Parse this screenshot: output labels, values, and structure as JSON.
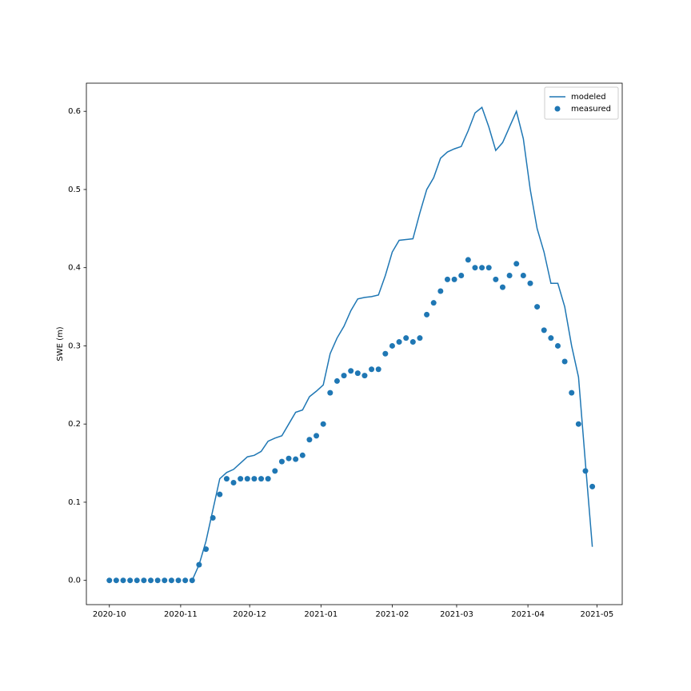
{
  "chart_data": {
    "type": "line",
    "ylabel": "SWE (m)",
    "x": [
      0,
      3,
      6,
      9,
      12,
      15,
      18,
      21,
      24,
      27,
      30,
      33,
      36,
      39,
      42,
      45,
      48,
      51,
      54,
      57,
      60,
      63,
      66,
      69,
      72,
      75,
      78,
      81,
      84,
      87,
      90,
      93,
      96,
      99,
      102,
      105,
      108,
      111,
      114,
      117,
      120,
      123,
      126,
      129,
      132,
      135,
      138,
      141,
      144,
      147,
      150,
      153,
      156,
      159,
      162,
      165,
      168,
      171,
      174,
      177,
      180,
      183,
      186,
      189,
      192,
      195,
      198,
      201,
      204,
      207,
      210
    ],
    "series": [
      {
        "name": "modeled",
        "type": "line",
        "color": "#1f77b4",
        "values": [
          null,
          null,
          null,
          null,
          null,
          null,
          null,
          null,
          null,
          null,
          null,
          null,
          0,
          0.02,
          0.05,
          0.09,
          0.13,
          0.138,
          0.142,
          0.15,
          0.158,
          0.16,
          0.165,
          0.178,
          0.182,
          0.185,
          0.2,
          0.215,
          0.218,
          0.235,
          0.242,
          0.25,
          0.29,
          0.31,
          0.325,
          0.345,
          0.36,
          0.362,
          0.363,
          0.365,
          0.39,
          0.42,
          0.435,
          0.436,
          0.437,
          0.47,
          0.5,
          0.515,
          0.54,
          0.548,
          0.552,
          0.555,
          0.575,
          0.598,
          0.605,
          0.58,
          0.55,
          0.56,
          0.58,
          0.6,
          0.565,
          0.5,
          0.45,
          0.42,
          0.38,
          0.38,
          0.35,
          0.3,
          0.26,
          0.15,
          0.043
        ]
      },
      {
        "name": "measured",
        "type": "scatter",
        "color": "#1f77b4",
        "values": [
          0,
          0,
          0,
          0,
          0,
          0,
          0,
          0,
          0,
          0,
          0,
          0,
          0,
          0.02,
          0.04,
          0.08,
          0.11,
          0.13,
          0.125,
          0.13,
          0.13,
          0.13,
          0.13,
          0.13,
          0.14,
          0.152,
          0.156,
          0.155,
          0.16,
          0.18,
          0.185,
          0.2,
          0.24,
          0.255,
          0.262,
          0.268,
          0.265,
          0.262,
          0.27,
          0.27,
          0.29,
          0.3,
          0.305,
          0.31,
          0.305,
          0.31,
          0.34,
          0.355,
          0.37,
          0.385,
          0.385,
          0.39,
          0.41,
          0.4,
          0.4,
          0.4,
          0.385,
          0.375,
          0.39,
          0.405,
          0.39,
          0.38,
          0.35,
          0.32,
          0.31,
          0.3,
          0.28,
          0.24,
          0.2,
          0.14,
          0.12
        ]
      }
    ],
    "xlim": [
      -10,
      223
    ],
    "xticks": [
      {
        "value": 0,
        "label": "2020-10"
      },
      {
        "value": 31,
        "label": "2020-11"
      },
      {
        "value": 61,
        "label": "2020-12"
      },
      {
        "value": 92,
        "label": "2021-01"
      },
      {
        "value": 123,
        "label": "2021-02"
      },
      {
        "value": 151,
        "label": "2021-03"
      },
      {
        "value": 182,
        "label": "2021-04"
      },
      {
        "value": 212,
        "label": "2021-05"
      }
    ],
    "ylim": [
      -0.031,
      0.636
    ],
    "yticks": [
      {
        "value": 0,
        "label": "0.0"
      },
      0.1,
      0.2,
      0.3,
      0.4,
      0.5,
      0.6
    ],
    "legend": "upper right"
  }
}
